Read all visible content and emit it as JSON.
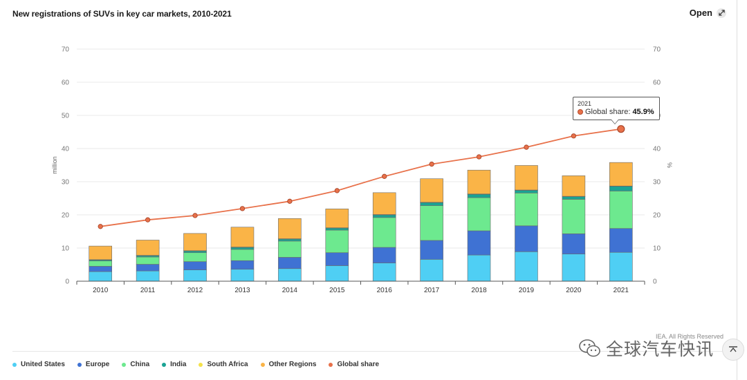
{
  "header": {
    "title": "New registrations of SUVs in key car markets, 2010-2021",
    "open_label": "Open"
  },
  "colors": {
    "United States": "#4fcff4",
    "Europe": "#3f72d3",
    "China": "#6de98f",
    "India": "#1aa394",
    "South Africa": "#f4e24a",
    "Other Regions": "#fab447",
    "Global share": "#e8714a"
  },
  "chart_data": {
    "type": "bar",
    "stacked": true,
    "categories": [
      "2010",
      "2011",
      "2012",
      "2013",
      "2014",
      "2015",
      "2016",
      "2017",
      "2018",
      "2019",
      "2020",
      "2021"
    ],
    "ylabel": "million",
    "y2label": "%",
    "ylim": [
      0,
      70
    ],
    "y2lim": [
      0,
      70
    ],
    "yticks": [
      0,
      10,
      20,
      30,
      40,
      50,
      60,
      70
    ],
    "grid": true,
    "legend_position": "bottom-left",
    "series": [
      {
        "name": "United States",
        "values": [
          2.9,
          3.1,
          3.4,
          3.6,
          3.8,
          4.7,
          5.5,
          6.6,
          7.9,
          8.9,
          8.2,
          8.7
        ]
      },
      {
        "name": "Europe",
        "values": [
          1.6,
          2.0,
          2.5,
          2.6,
          3.4,
          3.9,
          4.7,
          5.7,
          7.3,
          7.8,
          6.1,
          7.2
        ]
      },
      {
        "name": "China",
        "values": [
          1.6,
          2.2,
          2.7,
          3.4,
          4.9,
          6.8,
          9.0,
          10.5,
          10.0,
          9.9,
          10.4,
          11.3
        ]
      },
      {
        "name": "India",
        "values": [
          0.3,
          0.4,
          0.5,
          0.6,
          0.6,
          0.6,
          0.8,
          0.9,
          1.0,
          0.8,
          0.8,
          1.4
        ]
      },
      {
        "name": "South Africa",
        "values": [
          0.1,
          0.1,
          0.1,
          0.1,
          0.1,
          0.1,
          0.1,
          0.1,
          0.1,
          0.1,
          0.1,
          0.1
        ]
      },
      {
        "name": "Other Regions",
        "values": [
          4.1,
          4.6,
          5.2,
          6.0,
          6.1,
          5.7,
          6.6,
          7.1,
          7.2,
          7.4,
          6.2,
          7.1
        ]
      }
    ],
    "line_series": {
      "name": "Global share",
      "axis": "right",
      "values": [
        16.5,
        18.5,
        19.8,
        21.9,
        24.1,
        27.3,
        31.6,
        35.3,
        37.5,
        40.4,
        43.8,
        45.9
      ]
    }
  },
  "tooltip": {
    "year": "2021",
    "label": "Global share: ",
    "value": "45.9%"
  },
  "legend": [
    {
      "name": "United States",
      "color": "#4fcff4"
    },
    {
      "name": "Europe",
      "color": "#3f72d3"
    },
    {
      "name": "China",
      "color": "#6de98f"
    },
    {
      "name": "India",
      "color": "#1aa394"
    },
    {
      "name": "South Africa",
      "color": "#f4e24a"
    },
    {
      "name": "Other Regions",
      "color": "#fab447"
    },
    {
      "name": "Global share",
      "color": "#e8714a"
    }
  ],
  "footer": {
    "copyright": "IEA. All Rights Reserved",
    "watermark": "全球汽车快讯"
  },
  "icons": {
    "open": "expand-arrows-icon",
    "watermark": "wechat-logo-icon",
    "scroll": "scroll-top-icon"
  }
}
